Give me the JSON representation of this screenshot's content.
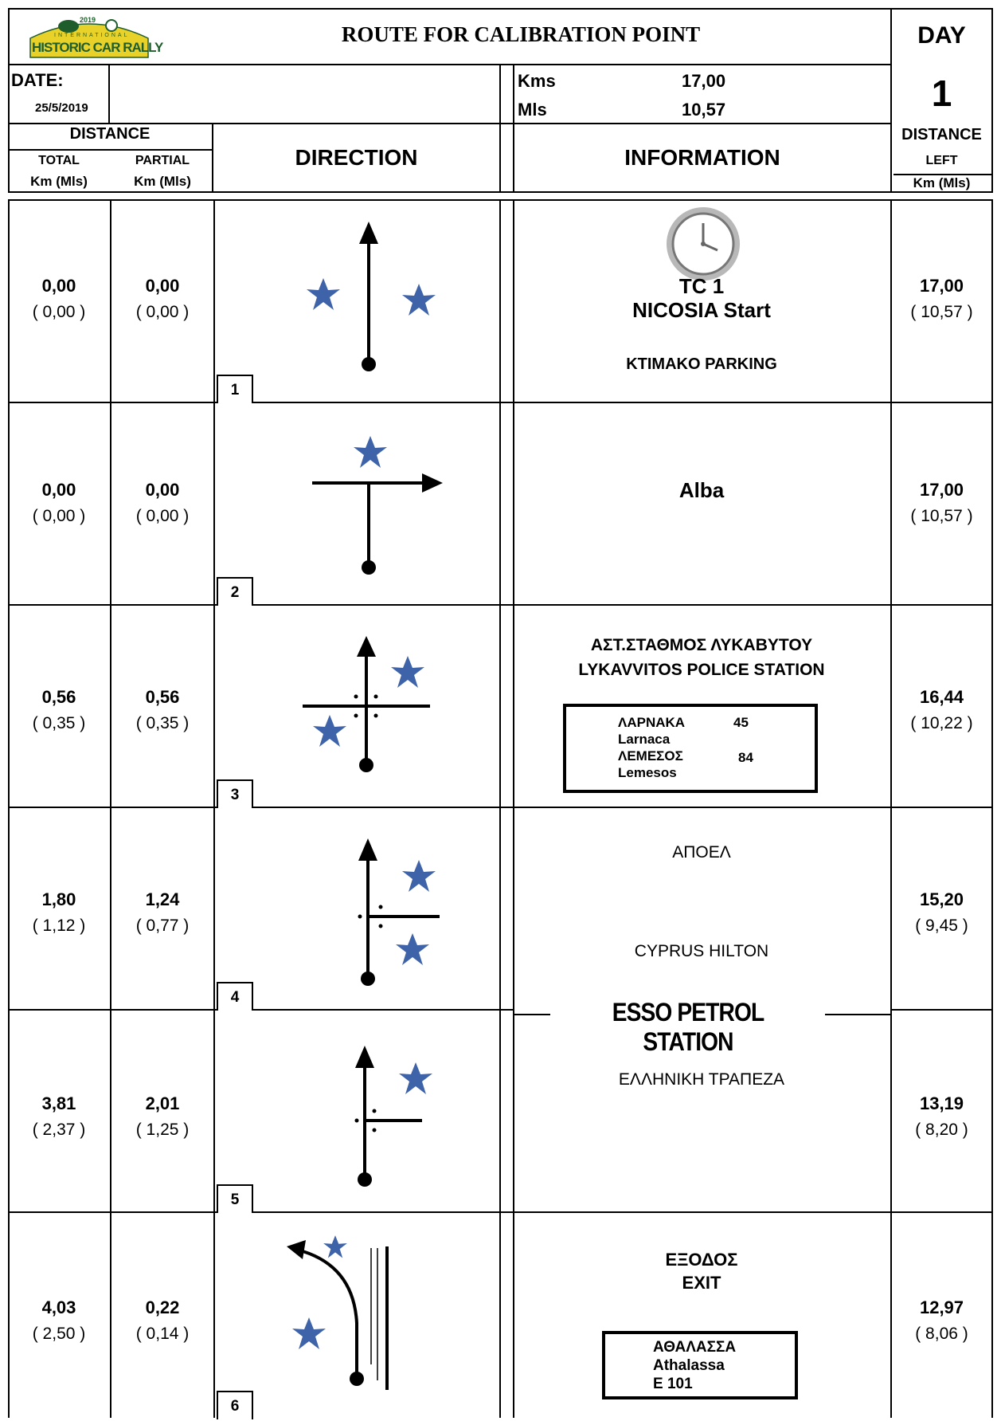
{
  "header": {
    "logo_year": "2019",
    "logo_small": "INTERNATIONAL",
    "logo_text": "HISTORIC CAR RALLY",
    "title": "ROUTE FOR CALIBRATION POINT",
    "day_label": "DAY",
    "day_value": "1",
    "date_label": "DATE:",
    "date_value": "25/5/2019",
    "kms_label": "Kms",
    "kms_value": "17,00",
    "mls_label": "Mls",
    "mls_value": "10,57"
  },
  "columns": {
    "distance": "DISTANCE",
    "total": "TOTAL",
    "partial": "PARTIAL",
    "unit": "Km (Mls)",
    "direction": "DIRECTION",
    "information": "INFORMATION",
    "distance_left": "DISTANCE",
    "left": "LEFT"
  },
  "rows": [
    {
      "n": "1",
      "total": "0,00",
      "total_mls": "( 0,00 )",
      "partial": "0,00",
      "partial_mls": "( 0,00 )",
      "left": "17,00",
      "left_mls": "( 10,57 )"
    },
    {
      "n": "2",
      "total": "0,00",
      "total_mls": "( 0,00 )",
      "partial": "0,00",
      "partial_mls": "( 0,00 )",
      "left": "17,00",
      "left_mls": "( 10,57 )"
    },
    {
      "n": "3",
      "total": "0,56",
      "total_mls": "( 0,35 )",
      "partial": "0,56",
      "partial_mls": "( 0,35 )",
      "left": "16,44",
      "left_mls": "( 10,22 )"
    },
    {
      "n": "4",
      "total": "1,80",
      "total_mls": "( 1,12 )",
      "partial": "1,24",
      "partial_mls": "( 0,77 )",
      "left": "15,20",
      "left_mls": "( 9,45 )"
    },
    {
      "n": "5",
      "total": "3,81",
      "total_mls": "( 2,37 )",
      "partial": "2,01",
      "partial_mls": "( 1,25 )",
      "left": "13,19",
      "left_mls": "( 8,20 )"
    },
    {
      "n": "6",
      "total": "4,03",
      "total_mls": "( 2,50 )",
      "partial": "0,22",
      "partial_mls": "( 0,14 )",
      "left": "12,97",
      "left_mls": "( 8,06 )"
    }
  ],
  "info": {
    "r1_tc": "TC 1",
    "r1_start": "NICOSIA Start",
    "r1_place": "KTIMAKO PARKING",
    "r2": "Alba",
    "r3_line1": "ΑΣΤ.ΣΤΑΘΜΟΣ ΛΥΚΑΒΥΤΟΥ",
    "r3_line2": "LYKAVVITOS POLICE STATION",
    "r3_sign_a": "ΛΑΡΝΑΚΑ",
    "r3_sign_a_num": "45",
    "r3_sign_b": "Larnaca",
    "r3_sign_c": "ΛΕΜΕΣΟΣ",
    "r3_sign_c_num": "84",
    "r3_sign_d": "Lemesos",
    "r4_top": "ΑΠΟΕΛ",
    "r4_bottom": "CYPRUS HILTON",
    "esso": "ESSO PETROL STATION",
    "r5": "ΕΛΛΗΝΙΚΗ ΤΡΑΠΕΖΑ",
    "r6_a": "ΕΞΟΔΟΣ",
    "r6_b": "EXIT",
    "r6_sign_a": "ΑΘΑΛΑΣΣΑ",
    "r6_sign_b": "Athalassa",
    "r6_sign_c": "E 101"
  },
  "colors": {
    "star": "#3f63a8",
    "logo_bg": "#e8d22a",
    "logo_text": "#1f5e2c"
  }
}
